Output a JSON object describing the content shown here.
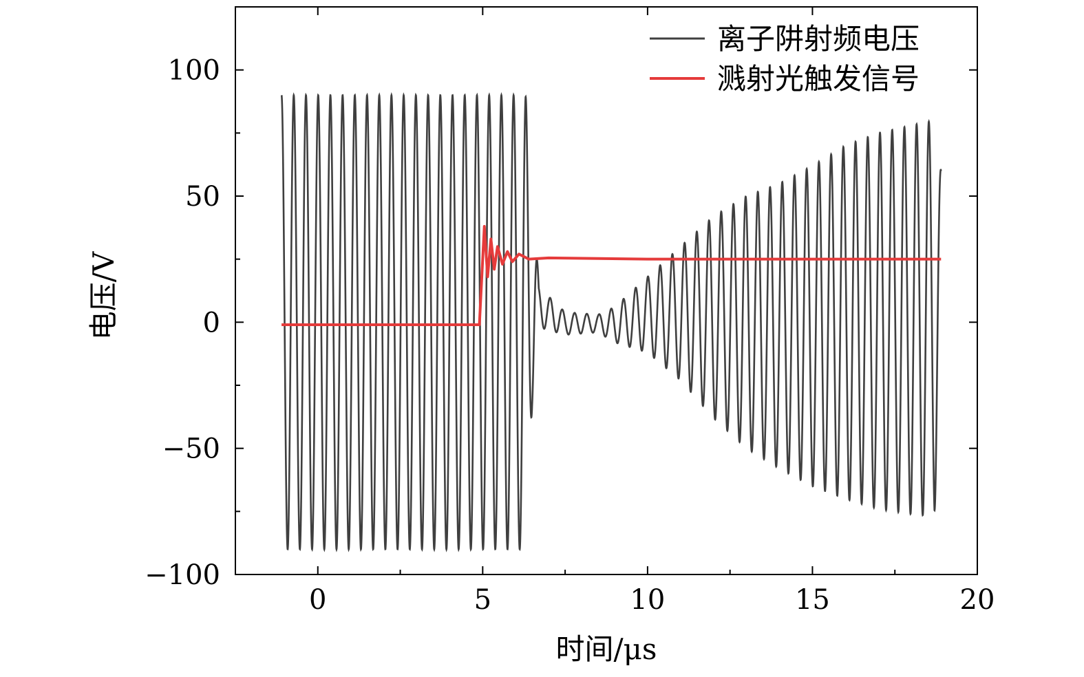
{
  "chart_data": {
    "type": "line",
    "xlabel": "时间/μs",
    "ylabel": "电压/V",
    "xlim": [
      -2.5,
      20
    ],
    "ylim": [
      -100,
      125
    ],
    "x_ticks": [
      0,
      5,
      10,
      15,
      20
    ],
    "x_tick_labels": [
      "0",
      "5",
      "10",
      "15",
      "20"
    ],
    "x_minor_ticks": [
      2.5,
      7.5,
      12.5,
      17.5
    ],
    "y_ticks": [
      -100,
      -50,
      0,
      50,
      100
    ],
    "y_tick_labels": [
      "−100",
      "−50",
      "0",
      "50",
      "100"
    ],
    "y_minor_ticks": [
      -75,
      -25,
      25,
      75
    ],
    "grid": false,
    "legend_position": "top-right",
    "series": [
      {
        "name": "离子阱射频电压",
        "color": "#3f3f3f",
        "frequency_mhz": 2.7,
        "x_range": [
          -1.1,
          18.9
        ],
        "envelope": [
          {
            "x": -1.1,
            "max": 90,
            "min": -90
          },
          {
            "x": 6.3,
            "max": 90,
            "min": -90
          },
          {
            "x": 6.5,
            "max": 64,
            "min": -33
          },
          {
            "x": 6.7,
            "max": 14,
            "min": -2
          },
          {
            "x": 7.5,
            "max": 4,
            "min": -5
          },
          {
            "x": 8.5,
            "max": 3,
            "min": -4
          },
          {
            "x": 9.0,
            "max": 6,
            "min": -8
          },
          {
            "x": 10.0,
            "max": 18,
            "min": -12
          },
          {
            "x": 11.0,
            "max": 30,
            "min": -23
          },
          {
            "x": 12.0,
            "max": 42,
            "min": -38
          },
          {
            "x": 13.0,
            "max": 50,
            "min": -50
          },
          {
            "x": 14.0,
            "max": 55,
            "min": -58
          },
          {
            "x": 15.0,
            "max": 62,
            "min": -65
          },
          {
            "x": 16.0,
            "max": 70,
            "min": -70
          },
          {
            "x": 17.0,
            "max": 75,
            "min": -74
          },
          {
            "x": 18.0,
            "max": 78,
            "min": -76
          },
          {
            "x": 18.7,
            "max": 80,
            "min": -77
          },
          {
            "x": 18.9,
            "max": 60,
            "min": -20
          }
        ]
      },
      {
        "name": "溅射光触发信号",
        "color": "#e53b3b",
        "points": [
          [
            -1.1,
            -1
          ],
          [
            4.9,
            -1
          ],
          [
            5.0,
            25
          ],
          [
            5.05,
            38
          ],
          [
            5.15,
            18
          ],
          [
            5.25,
            33
          ],
          [
            5.35,
            21
          ],
          [
            5.45,
            30
          ],
          [
            5.6,
            23
          ],
          [
            5.75,
            28
          ],
          [
            5.9,
            24
          ],
          [
            6.1,
            27
          ],
          [
            6.4,
            25
          ],
          [
            7.0,
            25.5
          ],
          [
            10.0,
            25
          ],
          [
            15.0,
            25
          ],
          [
            18.9,
            25
          ]
        ]
      }
    ]
  }
}
